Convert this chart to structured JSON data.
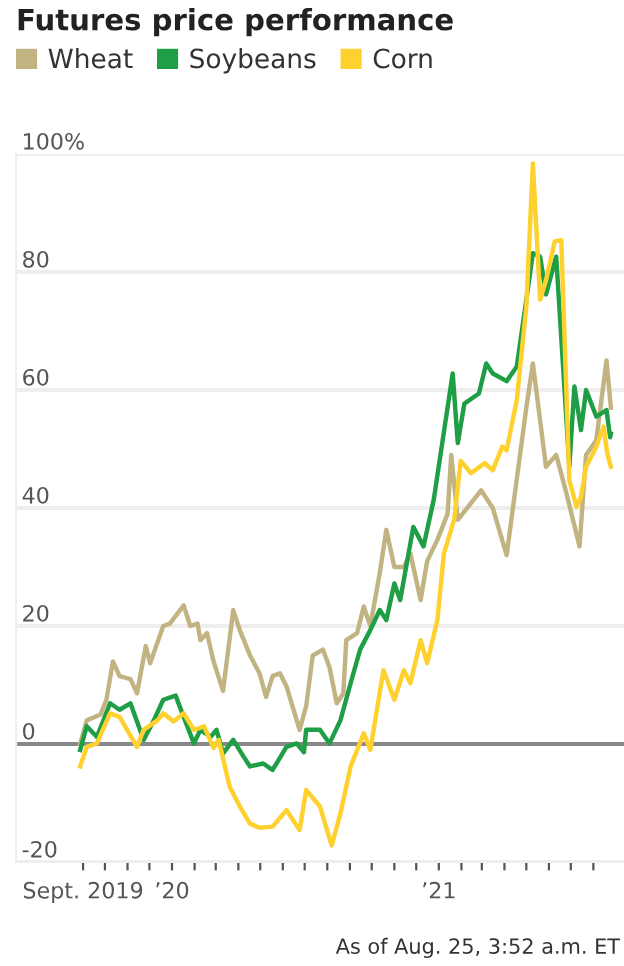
{
  "chart_data": {
    "type": "line",
    "title": "Futures price performance",
    "annotations": [
      "As of Aug. 25, 3:52 a.m. ET"
    ],
    "legend": "top",
    "grid": "y",
    "xlim": [
      "2019-06-01",
      "2021-09-12"
    ],
    "xticks": [
      {
        "value": "2019-09-01",
        "label": "Sept. 2019"
      },
      {
        "value": "2019-10-01",
        "label": null
      },
      {
        "value": "2019-11-01",
        "label": null
      },
      {
        "value": "2019-12-01",
        "label": null
      },
      {
        "value": "2020-01-01",
        "label": "’20"
      },
      {
        "value": "2020-02-01",
        "label": null
      },
      {
        "value": "2020-03-01",
        "label": null
      },
      {
        "value": "2020-04-01",
        "label": null
      },
      {
        "value": "2020-05-01",
        "label": null
      },
      {
        "value": "2020-06-01",
        "label": null
      },
      {
        "value": "2020-07-01",
        "label": null
      },
      {
        "value": "2020-08-01",
        "label": null
      },
      {
        "value": "2020-09-01",
        "label": null
      },
      {
        "value": "2020-10-01",
        "label": null
      },
      {
        "value": "2020-11-01",
        "label": null
      },
      {
        "value": "2020-12-01",
        "label": null
      },
      {
        "value": "2021-01-01",
        "label": "’21"
      },
      {
        "value": "2021-02-01",
        "label": null
      },
      {
        "value": "2021-03-01",
        "label": null
      },
      {
        "value": "2021-04-01",
        "label": null
      },
      {
        "value": "2021-05-01",
        "label": null
      },
      {
        "value": "2021-06-01",
        "label": null
      },
      {
        "value": "2021-07-01",
        "label": null
      },
      {
        "value": "2021-08-01",
        "label": null
      }
    ],
    "ylim": [
      -20,
      100
    ],
    "yticks": [
      -20,
      0,
      20,
      40,
      60,
      80,
      {
        "value": 100,
        "label": "100%"
      }
    ],
    "ref_lines": [
      {
        "axis": "y",
        "value": 0,
        "label": null,
        "color": "#888888"
      }
    ],
    "series": [
      {
        "name": "Wheat",
        "color": "#c2b482",
        "x": [
          "2019-08-28",
          "2019-09-06",
          "2019-09-25",
          "2019-10-03",
          "2019-10-12",
          "2019-10-21",
          "2019-11-05",
          "2019-11-14",
          "2019-11-26",
          "2019-12-02",
          "2019-12-20",
          "2019-12-29",
          "2020-01-17",
          "2020-01-26",
          "2020-02-05",
          "2020-02-09",
          "2020-02-18",
          "2020-02-27",
          "2020-03-11",
          "2020-03-25",
          "2020-04-03",
          "2020-04-17",
          "2020-04-30",
          "2020-05-09",
          "2020-05-18",
          "2020-05-28",
          "2020-06-06",
          "2020-06-24",
          "2020-07-03",
          "2020-07-12",
          "2020-07-26",
          "2020-08-04",
          "2020-08-14",
          "2020-08-23",
          "2020-08-27",
          "2020-09-11",
          "2020-09-20",
          "2020-09-29",
          "2020-10-12",
          "2020-10-21",
          "2020-11-01",
          "2020-11-14",
          "2020-11-23",
          "2020-12-07",
          "2020-12-16",
          "2020-12-30",
          "2021-01-13",
          "2021-01-18",
          "2021-01-27",
          "2021-02-28",
          "2021-03-16",
          "2021-04-04",
          "2021-05-01",
          "2021-05-10",
          "2021-05-28",
          "2021-06-11",
          "2021-06-25",
          "2021-07-13",
          "2021-07-22",
          "2021-08-05",
          "2021-08-19",
          "2021-08-25"
        ],
        "values": [
          0,
          4,
          5,
          7.5,
          14,
          11.5,
          11,
          8.6,
          16.6,
          13.7,
          20,
          20.4,
          23.5,
          20,
          20.4,
          17.6,
          18.8,
          14,
          9,
          22.7,
          19.3,
          15,
          12,
          8,
          11.5,
          12,
          9.8,
          2.4,
          6.4,
          15,
          16,
          13,
          6.9,
          8.6,
          17.6,
          18.8,
          23.3,
          20,
          29,
          36.3,
          30,
          30,
          32.3,
          24.4,
          31,
          34.6,
          39,
          49,
          38,
          43,
          40,
          32,
          57,
          64.5,
          47,
          49,
          42.5,
          33.5,
          49,
          51.5,
          65,
          57
        ]
      },
      {
        "name": "Soybeans",
        "color": "#1e9e45",
        "x": [
          "2019-08-28",
          "2019-09-06",
          "2019-09-20",
          "2019-10-08",
          "2019-10-21",
          "2019-11-05",
          "2019-11-23",
          "2019-12-07",
          "2019-12-20",
          "2020-01-06",
          "2020-01-17",
          "2020-01-31",
          "2020-02-09",
          "2020-02-23",
          "2020-03-02",
          "2020-03-11",
          "2020-03-25",
          "2020-04-08",
          "2020-04-17",
          "2020-05-05",
          "2020-05-18",
          "2020-06-06",
          "2020-06-20",
          "2020-06-30",
          "2020-07-03",
          "2020-07-22",
          "2020-08-04",
          "2020-08-19",
          "2020-09-02",
          "2020-09-15",
          "2020-09-29",
          "2020-10-12",
          "2020-10-21",
          "2020-11-01",
          "2020-11-09",
          "2020-11-27",
          "2020-12-11",
          "2020-12-25",
          "2021-01-20",
          "2021-01-27",
          "2021-02-05",
          "2021-02-25",
          "2021-03-07",
          "2021-03-16",
          "2021-04-04",
          "2021-04-18",
          "2021-05-01",
          "2021-05-10",
          "2021-05-20",
          "2021-05-28",
          "2021-06-11",
          "2021-06-29",
          "2021-07-06",
          "2021-07-15",
          "2021-07-22",
          "2021-08-05",
          "2021-08-19",
          "2021-08-24",
          "2021-08-25"
        ],
        "values": [
          -1,
          3,
          1.2,
          6.9,
          5.8,
          6.9,
          0.7,
          4,
          7.5,
          8.2,
          4.6,
          0.1,
          2.4,
          1.2,
          2.4,
          -1.6,
          0.7,
          -2.1,
          -3.8,
          -3.3,
          -4.4,
          -0.5,
          0.1,
          -1.4,
          2.4,
          2.4,
          0.1,
          4,
          10.3,
          16,
          19.3,
          22.7,
          21,
          27.2,
          24.4,
          36.8,
          33.5,
          41.4,
          62.8,
          51,
          57.7,
          59.4,
          64.5,
          62.8,
          61.5,
          64,
          75.3,
          83.2,
          82.6,
          76.2,
          82.6,
          47,
          60.6,
          53.2,
          60,
          55.5,
          56.6,
          52,
          52.6
        ]
      },
      {
        "name": "Corn",
        "color": "#ffd12e",
        "x": [
          "2019-08-28",
          "2019-09-06",
          "2019-09-20",
          "2019-10-08",
          "2019-10-21",
          "2019-11-14",
          "2019-11-23",
          "2019-12-12",
          "2019-12-20",
          "2020-01-03",
          "2020-01-17",
          "2020-01-31",
          "2020-02-14",
          "2020-02-27",
          "2020-03-05",
          "2020-03-20",
          "2020-04-03",
          "2020-04-17",
          "2020-04-30",
          "2020-05-18",
          "2020-06-06",
          "2020-06-24",
          "2020-07-03",
          "2020-07-22",
          "2020-08-07",
          "2020-08-19",
          "2020-09-02",
          "2020-09-20",
          "2020-09-29",
          "2020-10-17",
          "2020-11-01",
          "2020-11-14",
          "2020-11-23",
          "2020-12-07",
          "2020-12-16",
          "2020-12-30",
          "2021-01-08",
          "2021-01-22",
          "2021-01-31",
          "2021-02-14",
          "2021-03-05",
          "2021-03-16",
          "2021-03-29",
          "2021-04-04",
          "2021-04-18",
          "2021-05-01",
          "2021-05-10",
          "2021-05-20",
          "2021-05-28",
          "2021-06-09",
          "2021-06-18",
          "2021-06-29",
          "2021-07-09",
          "2021-07-15",
          "2021-07-22",
          "2021-08-05",
          "2021-08-15",
          "2021-08-20",
          "2021-08-25"
        ],
        "values": [
          -3.8,
          -0.5,
          0.1,
          5.2,
          4.6,
          -0.5,
          2.4,
          4,
          5.2,
          3.8,
          5.2,
          2.4,
          3,
          -0.7,
          0.7,
          -7.2,
          -10.6,
          -13.5,
          -14.2,
          -14,
          -11.2,
          -14.6,
          -7.8,
          -10.6,
          -17.2,
          -11.8,
          -3.8,
          1.8,
          -1,
          12.5,
          7.5,
          12.5,
          10.3,
          17.6,
          13.7,
          21,
          32.3,
          38,
          48,
          45.9,
          47.6,
          46.4,
          50.4,
          49.8,
          58.3,
          74.1,
          98.4,
          75.3,
          78.6,
          85.2,
          85.4,
          44.7,
          40.2,
          41.9,
          47,
          50.4,
          53.8,
          49.3,
          47
        ]
      }
    ]
  }
}
